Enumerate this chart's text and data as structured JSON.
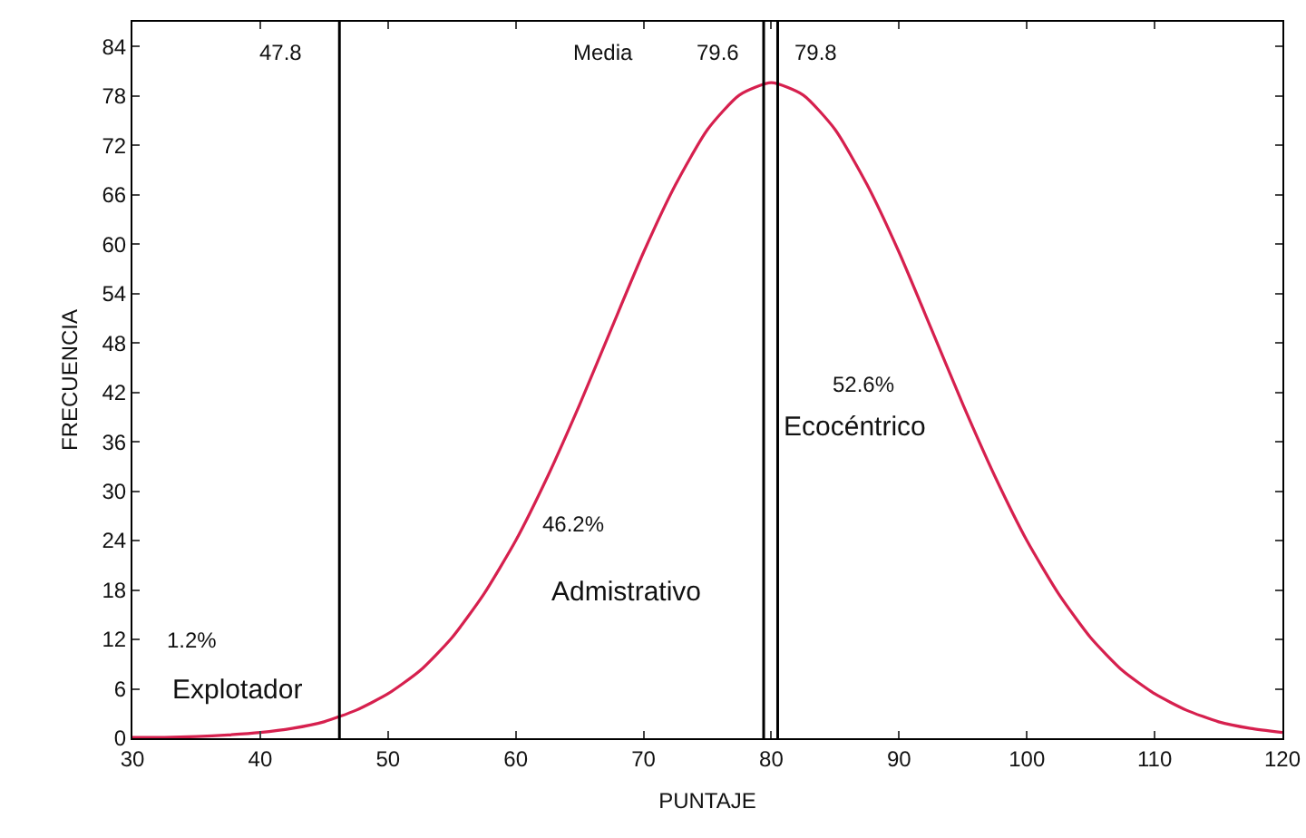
{
  "chart_data": {
    "type": "line",
    "xlabel": "PUNTAJE",
    "ylabel": "FRECUENCIA",
    "x": [
      30,
      32.5,
      35,
      37.5,
      40,
      42.5,
      45,
      47.5,
      50,
      52.5,
      55,
      57.5,
      60,
      62.5,
      65,
      67.5,
      70,
      72.5,
      75,
      77.5,
      80,
      82.5,
      85,
      87.5,
      90,
      92.5,
      95,
      97.5,
      100,
      102.5,
      105,
      107.5,
      110,
      112.5,
      115,
      117.5,
      120
    ],
    "series": [
      {
        "color": "#d6204e",
        "values": [
          0.1,
          0.1,
          0.2,
          0.4,
          0.7,
          1.2,
          2.0,
          3.4,
          5.4,
          8.2,
          12.2,
          17.5,
          24.0,
          31.8,
          40.5,
          49.8,
          59.0,
          67.2,
          73.9,
          78.1,
          79.6,
          78.1,
          73.9,
          67.2,
          59.0,
          49.8,
          40.5,
          31.8,
          24.0,
          17.5,
          12.2,
          8.2,
          5.4,
          3.4,
          2.0,
          1.2,
          0.7
        ]
      }
    ],
    "xlim": [
      30,
      120
    ],
    "xticks": [
      30,
      40,
      50,
      60,
      70,
      80,
      90,
      100,
      110,
      120
    ],
    "ylim": [
      0,
      87
    ],
    "yticks": [
      0,
      6,
      12,
      18,
      24,
      30,
      36,
      42,
      48,
      54,
      60,
      66,
      72,
      78,
      84
    ],
    "grid": false,
    "marker": "none",
    "line_style": "solid",
    "ref_lines": [
      {
        "axis": "x",
        "value": 46.2,
        "color": "#000000"
      },
      {
        "axis": "x",
        "value": 79.4,
        "color": "#000000"
      },
      {
        "axis": "x",
        "value": 80.5,
        "color": "#000000"
      }
    ],
    "annotations": [
      "47.8",
      "Media",
      "79.6",
      "79.8",
      "1.2%",
      "Explotador",
      "46.2%",
      "Admistrativo",
      "52.6%",
      "Ecocéntrico"
    ]
  }
}
